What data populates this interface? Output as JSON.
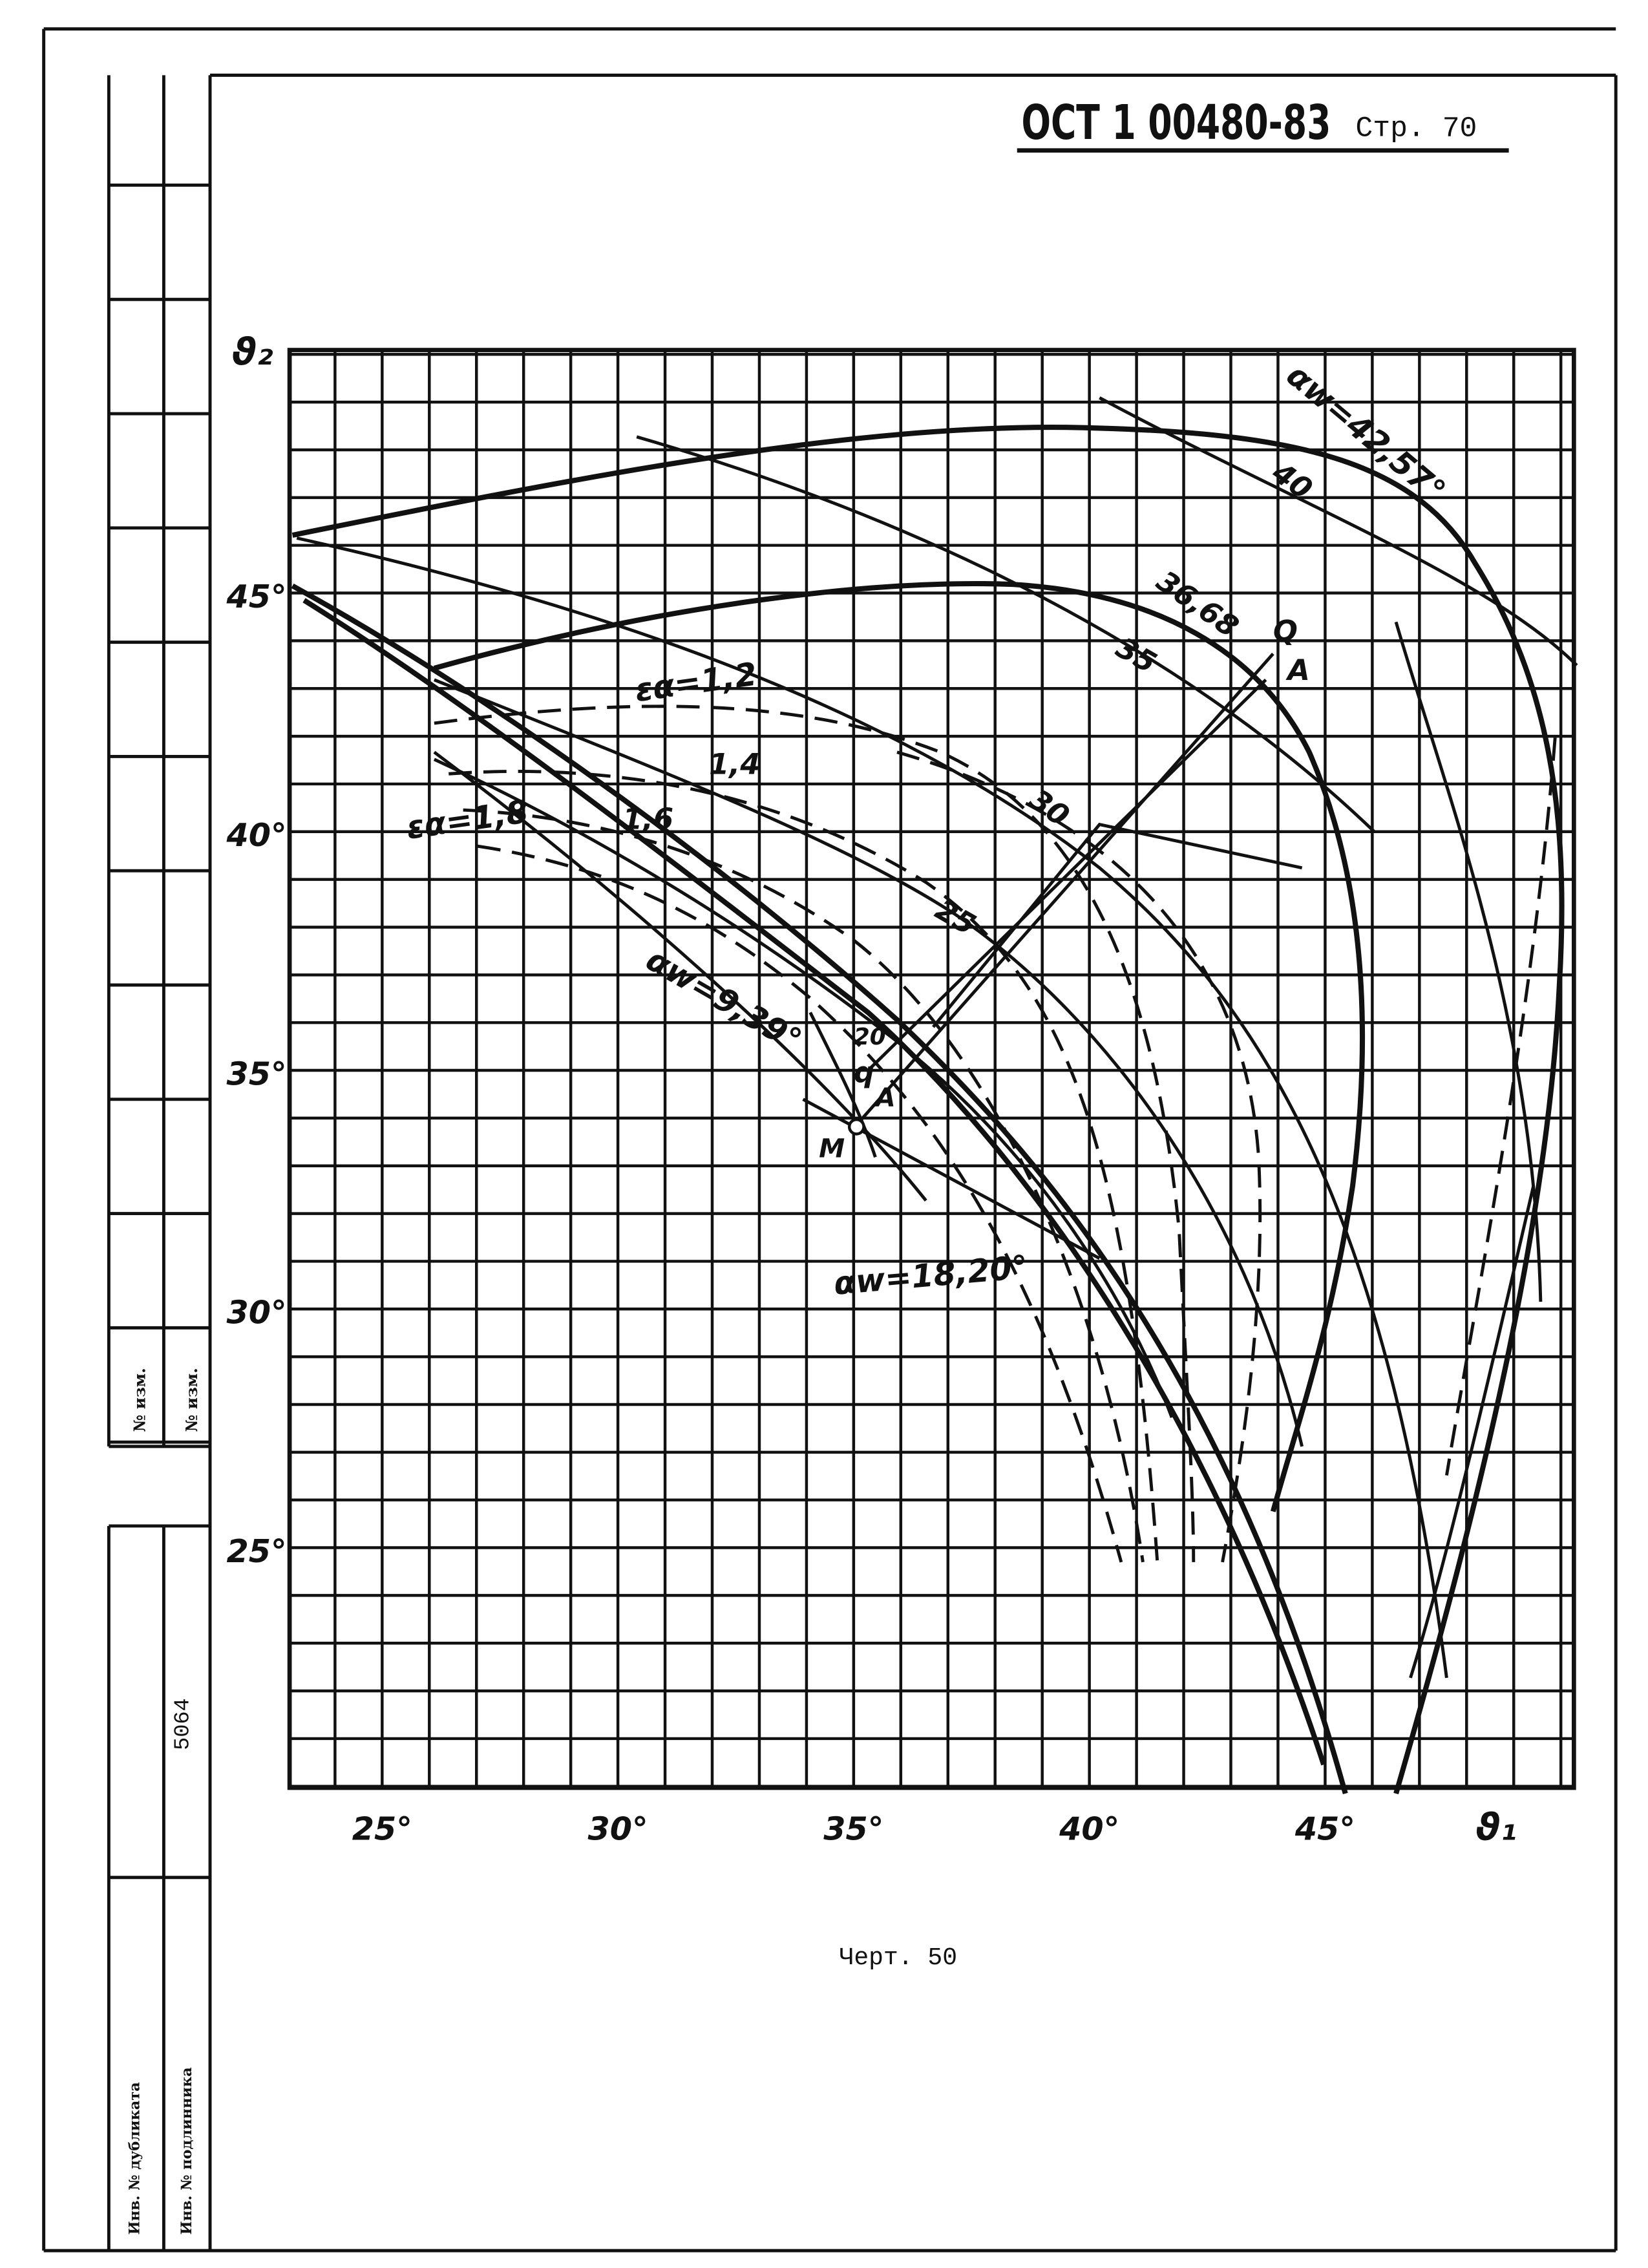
{
  "header": {
    "code": "ОСТ 1 00480-83",
    "page": "Стр. 70"
  },
  "chart": {
    "y_axis_label": "ϑ₂",
    "x_axis_label": "ϑ₁",
    "x_tick_labels": [
      "25°",
      "30°",
      "35°",
      "40°",
      "45°"
    ],
    "y_tick_labels": [
      "45°",
      "40°",
      "35°",
      "30°",
      "25°"
    ],
    "annotations": [
      "αw=42,57°",
      "40",
      "36,68",
      "35",
      "Q",
      "A",
      "εα=1,2",
      "30",
      "1,4",
      "1,6",
      "εα=1,8",
      "25",
      "αw=9,39°",
      "20",
      "q",
      "A",
      "M",
      "αw=18,20°"
    ]
  },
  "caption": "Черт. 50",
  "side_stamp": {
    "change_no_1": "№ изм.",
    "change_no_2": "№ изм.",
    "number": "5064",
    "duplicate": "Инв. № дубликата",
    "original": "Инв. № подлинника"
  }
}
